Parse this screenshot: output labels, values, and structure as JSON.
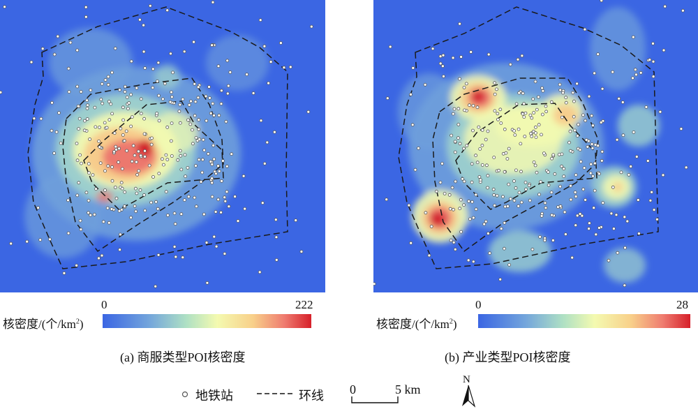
{
  "colors": {
    "background": "#3b66e3",
    "low": "#6f9fdc",
    "mid_low": "#9fd2cc",
    "mid": "#f2f9b0",
    "mid_high": "#f7c98a",
    "high": "#ea6f6a",
    "peak": "#d21a2a",
    "station_fill": "#ffffff",
    "station_stroke": "#555555",
    "ring": "#1a1a1a"
  },
  "panel_a": {
    "legend_label": "核密度/(个/km",
    "legend_sup": "2",
    "legend_close": ")",
    "min": "0",
    "max": "222",
    "caption": "(a) 商服类型POI核密度"
  },
  "panel_b": {
    "legend_label": "核密度/(个/km",
    "legend_sup": "2",
    "legend_close": ")",
    "min": "0",
    "max": "28",
    "caption": "(b) 产业类型POI核密度"
  },
  "legend": {
    "station_icon": "circle-icon",
    "station_label": "地铁站",
    "ring_label": "环线",
    "scale_zero": "0",
    "scale_value": "5 km",
    "north_label": "N"
  }
}
